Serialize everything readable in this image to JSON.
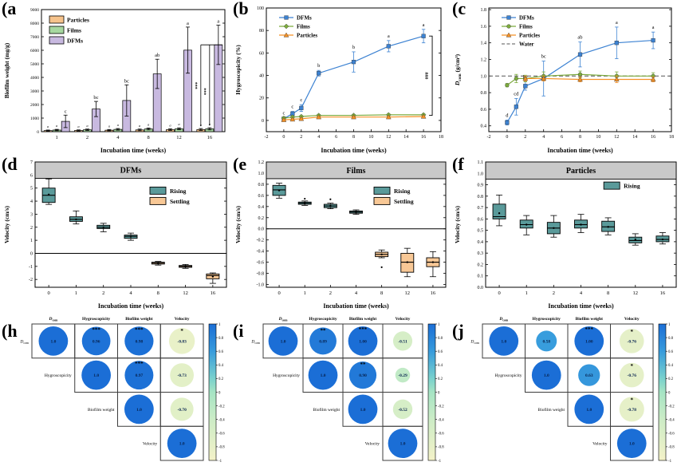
{
  "panels": {
    "a": {
      "tag": "(a"
    },
    "b": {
      "tag": "(b"
    },
    "c": {
      "tag": "(c"
    },
    "d": {
      "tag": "(d"
    },
    "e": {
      "tag": "(e"
    },
    "f": {
      "tag": "(f"
    },
    "h": {
      "tag": "(h"
    },
    "i": {
      "tag": "(i"
    },
    "j": {
      "tag": "(j"
    }
  },
  "colors": {
    "particles_bar": "#F6C38C",
    "films_bar": "#A7D8A0",
    "dfms_bar": "#C8B9E0",
    "dfms_line": "#3C82D2",
    "films_line": "#7CAB3C",
    "particles_line": "#F59125",
    "rising": "#5A9A9A",
    "settling": "#F8C896",
    "band": "#C9C9C9",
    "water": "#555555"
  },
  "chart_data": {
    "a": {
      "type": "bar",
      "xlabel": "Incubation time (weeks)",
      "ylabel": "Biofilm weight (mg/g)",
      "categories": [
        "1",
        "2",
        "4",
        "8",
        "12",
        "16"
      ],
      "ylim": [
        0,
        9000
      ],
      "yticks": [
        0,
        9000,
        1000
      ],
      "ydec": 0,
      "series": [
        {
          "name": "Particles",
          "color_key": "particles_bar",
          "values": [
            80,
            90,
            110,
            130,
            150,
            160
          ],
          "errors": [
            40,
            40,
            50,
            60,
            60,
            70
          ],
          "letters": [
            "a",
            "a",
            "a",
            "a",
            "a",
            "a"
          ],
          "letter_size": 4.5
        },
        {
          "name": "Films",
          "color_key": "films_bar",
          "values": [
            120,
            140,
            170,
            200,
            210,
            210
          ],
          "errors": [
            50,
            50,
            60,
            70,
            70,
            80
          ],
          "letters": [
            "a",
            "a",
            "a",
            "a",
            "a",
            "a"
          ],
          "letter_size": 4.5
        },
        {
          "name": "DFMs",
          "color_key": "dfms_bar",
          "values": [
            760,
            1670,
            2300,
            4260,
            6010,
            6400
          ],
          "errors": [
            460,
            560,
            1150,
            1080,
            1700,
            1450
          ],
          "letters": [
            "c",
            "bc",
            "bc",
            "ab",
            "a",
            "a"
          ],
          "letter_size": 6.5
        }
      ],
      "sig": {
        "label": "***",
        "at_value": 6400
      }
    },
    "b": {
      "type": "line",
      "xlabel": "Incubation time (weeks)",
      "ylabel": "Hygroscopicity (%)",
      "xlim": [
        -2,
        18
      ],
      "xticks": [
        -2,
        18,
        2
      ],
      "ylim": [
        -10,
        100
      ],
      "yticks": [
        0,
        100,
        20
      ],
      "ydec": 0,
      "x": [
        0,
        1,
        2,
        4,
        8,
        12,
        16
      ],
      "series": [
        {
          "name": "DFMs",
          "color_key": "dfms_line",
          "marker": "square",
          "values": [
            1.5,
            6,
            11,
            42,
            52,
            66,
            75
          ],
          "errors": [
            1,
            2,
            3,
            2.5,
            9,
            5,
            6
          ],
          "letters": [
            "c",
            "c",
            "c",
            "b",
            "b",
            "a",
            "a"
          ]
        },
        {
          "name": "Films",
          "color_key": "films_line",
          "marker": "diamond",
          "values": [
            2,
            3,
            3.5,
            4.5,
            4.5,
            5,
            5
          ],
          "errors": [
            0.8,
            0.8,
            0.8,
            0.8,
            0.8,
            0.8,
            0.8
          ]
        },
        {
          "name": "Particles",
          "color_key": "particles_line",
          "marker": "triangle",
          "values": [
            0.5,
            1,
            1.5,
            3,
            3,
            3,
            3.5
          ],
          "errors": [
            0.5,
            0.5,
            0.5,
            0.5,
            0.5,
            0.5,
            0.5
          ]
        }
      ],
      "bracket": {
        "x": 17,
        "y1": 75,
        "y2": 4.5,
        "label": "###"
      }
    },
    "c": {
      "type": "line",
      "xlabel": "Incubation time (weeks)",
      "ylabel": "D_com (g/cm³)",
      "xlim": [
        -2,
        18
      ],
      "xticks": [
        -2,
        18,
        2
      ],
      "ylim": [
        0.33,
        1.82
      ],
      "yticks": [
        0.4,
        1.8,
        0.2
      ],
      "ydec": 1,
      "x": [
        0,
        1,
        2,
        4,
        8,
        12,
        16
      ],
      "hline_dashed": 1.0,
      "water_label": "Water",
      "series": [
        {
          "name": "DFMs",
          "color_key": "dfms_line",
          "marker": "square",
          "values": [
            0.44,
            0.63,
            0.88,
            0.97,
            1.26,
            1.4,
            1.43
          ],
          "errors": [
            0.03,
            0.1,
            0.05,
            0.21,
            0.15,
            0.19,
            0.1
          ],
          "letters": [
            "d",
            "cd",
            "bc",
            "bc",
            "ab",
            "a",
            "a"
          ]
        },
        {
          "name": "Films",
          "color_key": "films_line",
          "marker": "circle",
          "values": [
            0.89,
            0.97,
            0.97,
            1.0,
            1.02,
            1.0,
            1.0
          ],
          "errors": [
            0.02,
            0.05,
            0.04,
            0.05,
            0.04,
            0.05,
            0.04
          ]
        },
        {
          "name": "Particles",
          "color_key": "particles_line",
          "marker": "triangle",
          "x": [
            2,
            4,
            8,
            12,
            16
          ],
          "values": [
            0.97,
            0.97,
            0.96,
            0.96,
            0.96
          ],
          "errors": [
            0.03,
            0.03,
            0.03,
            0.04,
            0.03
          ]
        }
      ]
    },
    "d": {
      "type": "box",
      "title": "DFMs",
      "xlabel": "Incubation time (weeks)",
      "ylabel": "Velocity (cm/s)",
      "categories": [
        "0",
        "1",
        "2",
        "4",
        "8",
        "12",
        "16"
      ],
      "ylim": [
        -2.6,
        7
      ],
      "yticks": [
        -2,
        7,
        1
      ],
      "ydec": 0,
      "band": [
        5.75,
        7
      ],
      "hline": 0,
      "legend": [
        "Rising",
        "Settling"
      ],
      "legend_pos": [
        0.6,
        0.2
      ],
      "boxes": [
        {
          "cat": 0,
          "group": "rising",
          "lo": 3.75,
          "q1": 3.9,
          "med": 4.45,
          "q3": 5.0,
          "hi": 5.7,
          "mean": 4.5
        },
        {
          "cat": 1,
          "group": "rising",
          "lo": 2.25,
          "q1": 2.45,
          "med": 2.6,
          "q3": 2.8,
          "hi": 3.25,
          "mean": 2.6
        },
        {
          "cat": 2,
          "group": "rising",
          "lo": 1.65,
          "q1": 1.9,
          "med": 2.0,
          "q3": 2.15,
          "hi": 2.3,
          "mean": 2.0
        },
        {
          "cat": 3,
          "group": "rising",
          "lo": 1.0,
          "q1": 1.15,
          "med": 1.3,
          "q3": 1.4,
          "hi": 1.55,
          "mean": 1.28
        },
        {
          "cat": 4,
          "group": "settling",
          "lo": -0.9,
          "q1": -0.82,
          "med": -0.75,
          "q3": -0.68,
          "hi": -0.62,
          "mean": -0.75
        },
        {
          "cat": 5,
          "group": "settling",
          "lo": -1.15,
          "q1": -1.07,
          "med": -1.0,
          "q3": -0.93,
          "hi": -0.85,
          "mean": -1.0
        },
        {
          "cat": 6,
          "group": "settling",
          "lo": -2.3,
          "q1": -1.95,
          "med": -1.7,
          "q3": -1.58,
          "hi": -1.5,
          "mean": -1.78
        }
      ]
    },
    "e": {
      "type": "box",
      "title": "Films",
      "xlabel": "Incubation time (weeks)",
      "ylabel": "Velocity (cm/s)",
      "categories": [
        "0",
        "1",
        "2",
        "4",
        "8",
        "12",
        "16"
      ],
      "ylim": [
        -1.05,
        1.2
      ],
      "yticks": [
        -1.0,
        1.2,
        0.2
      ],
      "ydec": 1,
      "band": [
        0.9,
        1.2
      ],
      "hline": 0,
      "legend": [
        "Rising",
        "Settling"
      ],
      "legend_pos": [
        0.6,
        0.2
      ],
      "boxes": [
        {
          "cat": 0,
          "group": "rising",
          "lo": 0.55,
          "q1": 0.6,
          "med": 0.7,
          "q3": 0.78,
          "hi": 0.82,
          "mean": 0.69
        },
        {
          "cat": 1,
          "group": "rising",
          "lo": 0.42,
          "q1": 0.44,
          "med": 0.46,
          "q3": 0.48,
          "hi": 0.5,
          "mean": 0.46,
          "out": [
            0.54
          ]
        },
        {
          "cat": 2,
          "group": "rising",
          "lo": 0.36,
          "q1": 0.38,
          "med": 0.41,
          "q3": 0.44,
          "hi": 0.46,
          "mean": 0.41,
          "out": [
            0.53
          ]
        },
        {
          "cat": 3,
          "group": "rising",
          "lo": 0.26,
          "q1": 0.28,
          "med": 0.3,
          "q3": 0.32,
          "hi": 0.34,
          "mean": 0.3
        },
        {
          "cat": 4,
          "group": "settling",
          "lo": -0.52,
          "q1": -0.5,
          "med": -0.46,
          "q3": -0.42,
          "hi": -0.38,
          "mean": -0.46,
          "out": [
            -0.69
          ]
        },
        {
          "cat": 5,
          "group": "settling",
          "lo": -0.86,
          "q1": -0.78,
          "med": -0.6,
          "q3": -0.44,
          "hi": -0.35,
          "mean": -0.6
        },
        {
          "cat": 6,
          "group": "settling",
          "lo": -0.86,
          "q1": -0.68,
          "med": -0.6,
          "q3": -0.52,
          "hi": -0.41,
          "mean": -0.6
        }
      ]
    },
    "f": {
      "type": "box",
      "title": "Particles",
      "xlabel": "Incubation time (weeks)",
      "ylabel": "Velocity (cm/s)",
      "categories": [
        "0",
        "1",
        "2",
        "4",
        "8",
        "12",
        "16"
      ],
      "ylim": [
        0,
        1.1
      ],
      "yticks": [
        0,
        1.1,
        0.1
      ],
      "ydec": 1,
      "band": [
        0.95,
        1.1
      ],
      "legend": [
        "Rising"
      ],
      "legend_pos": [
        0.62,
        0.16
      ],
      "boxes": [
        {
          "cat": 0,
          "group": "rising",
          "lo": 0.54,
          "q1": 0.6,
          "med": 0.62,
          "q3": 0.73,
          "hi": 0.81,
          "mean": 0.65
        },
        {
          "cat": 1,
          "group": "rising",
          "lo": 0.46,
          "q1": 0.52,
          "med": 0.55,
          "q3": 0.59,
          "hi": 0.63,
          "mean": 0.55
        },
        {
          "cat": 2,
          "group": "rising",
          "lo": 0.44,
          "q1": 0.47,
          "med": 0.52,
          "q3": 0.57,
          "hi": 0.63,
          "mean": 0.52
        },
        {
          "cat": 3,
          "group": "rising",
          "lo": 0.48,
          "q1": 0.52,
          "med": 0.55,
          "q3": 0.59,
          "hi": 0.64,
          "mean": 0.55
        },
        {
          "cat": 4,
          "group": "rising",
          "lo": 0.46,
          "q1": 0.49,
          "med": 0.53,
          "q3": 0.58,
          "hi": 0.61,
          "mean": 0.53
        },
        {
          "cat": 5,
          "group": "rising",
          "lo": 0.37,
          "q1": 0.39,
          "med": 0.41,
          "q3": 0.44,
          "hi": 0.47,
          "mean": 0.42
        },
        {
          "cat": 6,
          "group": "rising",
          "lo": 0.38,
          "q1": 0.4,
          "med": 0.42,
          "q3": 0.45,
          "hi": 0.48,
          "mean": 0.42
        }
      ]
    },
    "h": {
      "type": "corr",
      "labels": [
        "D_com",
        "Hygroscopicity",
        "Biofilm weight",
        "Velocity"
      ],
      "rows": [
        [
          {
            "v": 1.0,
            "t": "1.0",
            "s": ""
          },
          {
            "v": 0.96,
            "t": "0.96",
            "s": "***"
          },
          {
            "v": 0.98,
            "t": "0.98",
            "s": "***"
          },
          {
            "v": -0.83,
            "t": "-0.83",
            "s": "*"
          }
        ],
        [
          null,
          {
            "v": 1.0,
            "t": "1.0",
            "s": ""
          },
          {
            "v": 0.97,
            "t": "0.97",
            "s": "***"
          },
          {
            "v": -0.73,
            "t": "-0.73",
            "s": ""
          }
        ],
        [
          null,
          null,
          {
            "v": 1.0,
            "t": "1.0",
            "s": ""
          },
          {
            "v": -0.7,
            "t": "-0.70",
            "s": ""
          }
        ],
        [
          null,
          null,
          null,
          {
            "v": 1.0,
            "t": "1.0",
            "s": ""
          }
        ]
      ],
      "colorbar_ticks": [
        "1",
        "0.8",
        "0.6",
        "0.4",
        "0.2",
        "0",
        "-0.2",
        "-0.4",
        "-0.6",
        "-0.8",
        "-1"
      ]
    },
    "i": {
      "type": "corr",
      "labels": [
        "D_com",
        "Hygroscopicity",
        "Biofilm weight",
        "Velocity"
      ],
      "rows": [
        [
          {
            "v": 1.0,
            "t": "1.0",
            "s": ""
          },
          {
            "v": 0.89,
            "t": "0.89",
            "s": "**"
          },
          {
            "v": 1.0,
            "t": "1.00",
            "s": "***"
          },
          {
            "v": -0.51,
            "t": "-0.51",
            "s": ""
          }
        ],
        [
          null,
          {
            "v": 1.0,
            "t": "1.0",
            "s": ""
          },
          {
            "v": 0.9,
            "t": "0.90",
            "s": "**"
          },
          {
            "v": -0.29,
            "t": "-0.29",
            "s": ""
          }
        ],
        [
          null,
          null,
          {
            "v": 1.0,
            "t": "1.0",
            "s": ""
          },
          {
            "v": -0.52,
            "t": "-0.52",
            "s": ""
          }
        ],
        [
          null,
          null,
          null,
          {
            "v": 1.0,
            "t": "1.0",
            "s": ""
          }
        ]
      ],
      "colorbar_ticks": [
        "1",
        "0.8",
        "0.6",
        "0.4",
        "0.2",
        "0",
        "-0.2",
        "-0.4",
        "-0.6",
        "-0.8",
        "-1"
      ]
    },
    "j": {
      "type": "corr",
      "labels": [
        "D_com",
        "Hygroscopicity",
        "Biofilm weight",
        "Velocity"
      ],
      "rows": [
        [
          {
            "v": 1.0,
            "t": "1.0",
            "s": ""
          },
          {
            "v": 0.58,
            "t": "0.58",
            "s": ""
          },
          {
            "v": 1.0,
            "t": "1.00",
            "s": "***"
          },
          {
            "v": -0.76,
            "t": "-0.76",
            "s": "*"
          }
        ],
        [
          null,
          {
            "v": 1.0,
            "t": "1.0",
            "s": ""
          },
          {
            "v": 0.63,
            "t": "0.63",
            "s": ""
          },
          {
            "v": -0.76,
            "t": "-0.76",
            "s": "*"
          }
        ],
        [
          null,
          null,
          {
            "v": 1.0,
            "t": "1.0",
            "s": ""
          },
          {
            "v": -0.78,
            "t": "-0.78",
            "s": "*"
          }
        ],
        [
          null,
          null,
          null,
          {
            "v": 1.0,
            "t": "1.0",
            "s": ""
          }
        ]
      ],
      "colorbar_ticks": [
        "1",
        "0.8",
        "0.6",
        "0.4",
        "0.2",
        "0",
        "-0.2",
        "-0.4",
        "-0.6",
        "-0.8",
        "-1"
      ]
    }
  }
}
